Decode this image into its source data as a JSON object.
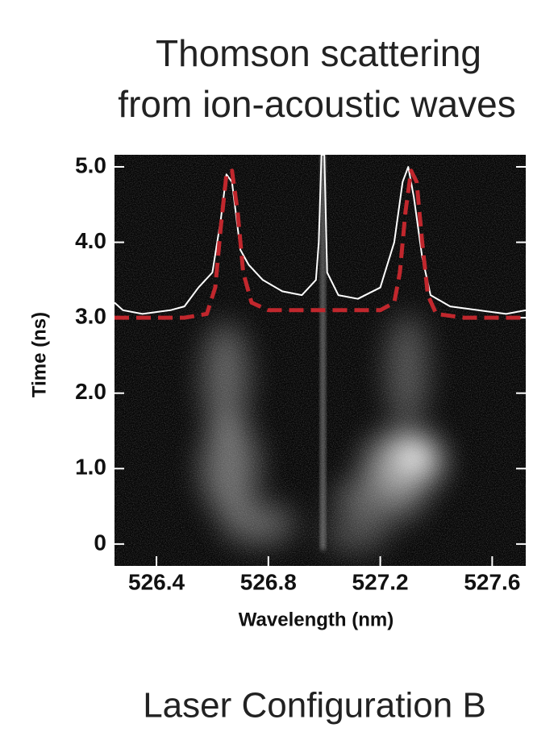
{
  "chart_data": {
    "type": "line",
    "title": [
      "Thomson scattering",
      "from ion-acoustic waves"
    ],
    "caption": "Laser Configuration B",
    "x_label": "Wavelength (nm)",
    "y_label": "Time (ns)",
    "xlim": [
      526.25,
      527.72
    ],
    "ylim": [
      -0.29,
      5.16
    ],
    "xticks": [
      526.4,
      526.8,
      527.2,
      527.6
    ],
    "yticks": [
      0,
      {
        "value": 1,
        "label": "1.0"
      },
      {
        "value": 2,
        "label": "2.0"
      },
      {
        "value": 3,
        "label": "3.0"
      },
      {
        "value": 4,
        "label": "4.0"
      },
      {
        "value": 5,
        "label": "5.0"
      }
    ],
    "series": [
      {
        "color": "#ffffff",
        "dashed": false,
        "x": [
          526.25,
          526.28,
          526.35,
          526.45,
          526.5,
          526.55,
          526.6,
          526.63,
          526.65,
          526.67,
          526.7,
          526.73,
          526.78,
          526.85,
          526.92,
          526.97,
          526.98,
          526.99,
          527.0,
          527.01,
          527.05,
          527.12,
          527.2,
          527.25,
          527.28,
          527.3,
          527.32,
          527.35,
          527.38,
          527.45,
          527.55,
          527.65,
          527.72
        ],
        "values": [
          3.2,
          3.1,
          3.05,
          3.1,
          3.15,
          3.4,
          3.6,
          4.3,
          4.9,
          4.8,
          3.9,
          3.7,
          3.5,
          3.35,
          3.3,
          3.5,
          4.0,
          5.16,
          5.16,
          3.6,
          3.3,
          3.25,
          3.4,
          4.0,
          4.8,
          5.0,
          4.6,
          3.8,
          3.3,
          3.15,
          3.1,
          3.05,
          3.1
        ]
      },
      {
        "color": "#c1272d",
        "dashed": true,
        "x": [
          526.25,
          526.5,
          526.58,
          526.61,
          526.63,
          526.65,
          526.67,
          526.69,
          526.71,
          526.74,
          526.8,
          527.0,
          527.2,
          527.25,
          527.27,
          527.29,
          527.31,
          527.33,
          527.35,
          527.37,
          527.4,
          527.5,
          527.72
        ],
        "values": [
          3.0,
          3.0,
          3.05,
          3.4,
          4.2,
          4.9,
          4.95,
          4.4,
          3.6,
          3.2,
          3.1,
          3.1,
          3.1,
          3.2,
          3.6,
          4.4,
          4.95,
          4.8,
          4.0,
          3.3,
          3.05,
          3.0,
          3.0
        ]
      }
    ]
  }
}
